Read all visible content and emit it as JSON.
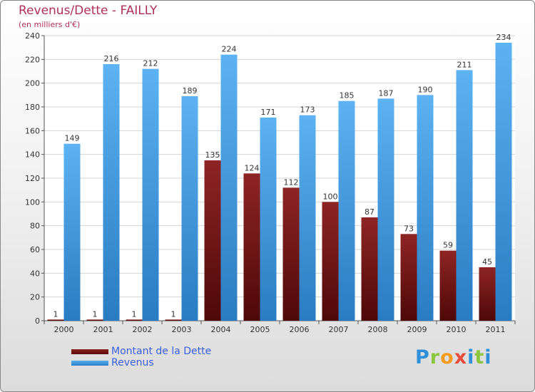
{
  "title": "Revenus/Dette - FAILLY",
  "subtitle": "(en milliers d'€)",
  "logo": "Proxiti",
  "colors": {
    "debt": "#7a1818",
    "revenue": "#3d9be0",
    "title": "#b0305a",
    "legend_text": "#3a5fe0"
  },
  "chart_data": {
    "type": "bar",
    "title": "Revenus/Dette - FAILLY",
    "ylabel": "(en milliers d'€)",
    "xlabel": "",
    "ylim": [
      0,
      240
    ],
    "yticks": [
      0,
      20,
      40,
      60,
      80,
      100,
      120,
      140,
      160,
      180,
      200,
      220,
      240
    ],
    "grid": true,
    "legend_position": "bottom-left",
    "categories": [
      "2000",
      "2001",
      "2002",
      "2003",
      "2004",
      "2005",
      "2006",
      "2007",
      "2008",
      "2009",
      "2010",
      "2011"
    ],
    "series": [
      {
        "name": "Montant de la Dette",
        "values": [
          1,
          1,
          1,
          1,
          135,
          124,
          112,
          100,
          87,
          73,
          59,
          45
        ]
      },
      {
        "name": "Revenus",
        "values": [
          149,
          216,
          212,
          189,
          224,
          171,
          173,
          185,
          187,
          190,
          211,
          234
        ]
      }
    ]
  }
}
